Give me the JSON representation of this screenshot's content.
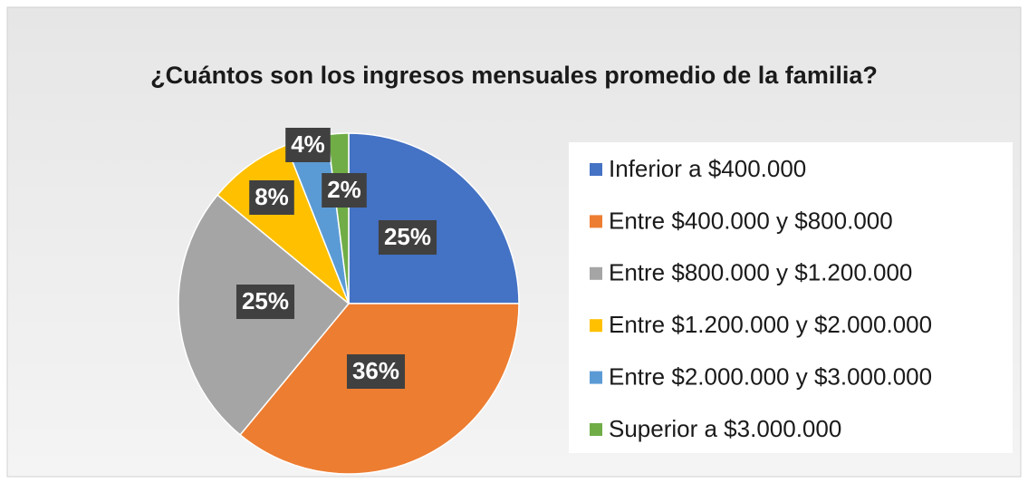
{
  "chart_data": {
    "type": "pie",
    "title": "¿Cuántos son los ingresos mensuales promedio de la familia?",
    "categories": [
      "Inferior a $400.000",
      "Entre $400.000 y $800.000",
      "Entre $800.000 y $1.200.000",
      "Entre $1.200.000 y $2.000.000",
      "Entre $2.000.000 y $3.000.000",
      "Superior a $3.000.000"
    ],
    "values": [
      25,
      36,
      25,
      8,
      4,
      2
    ],
    "value_labels": [
      "25%",
      "36%",
      "25%",
      "8%",
      "4%",
      "2%"
    ],
    "colors": [
      "#4472c4",
      "#ed7d31",
      "#a5a5a5",
      "#ffc000",
      "#5b9bd5",
      "#70ad47"
    ],
    "legend": "right"
  }
}
